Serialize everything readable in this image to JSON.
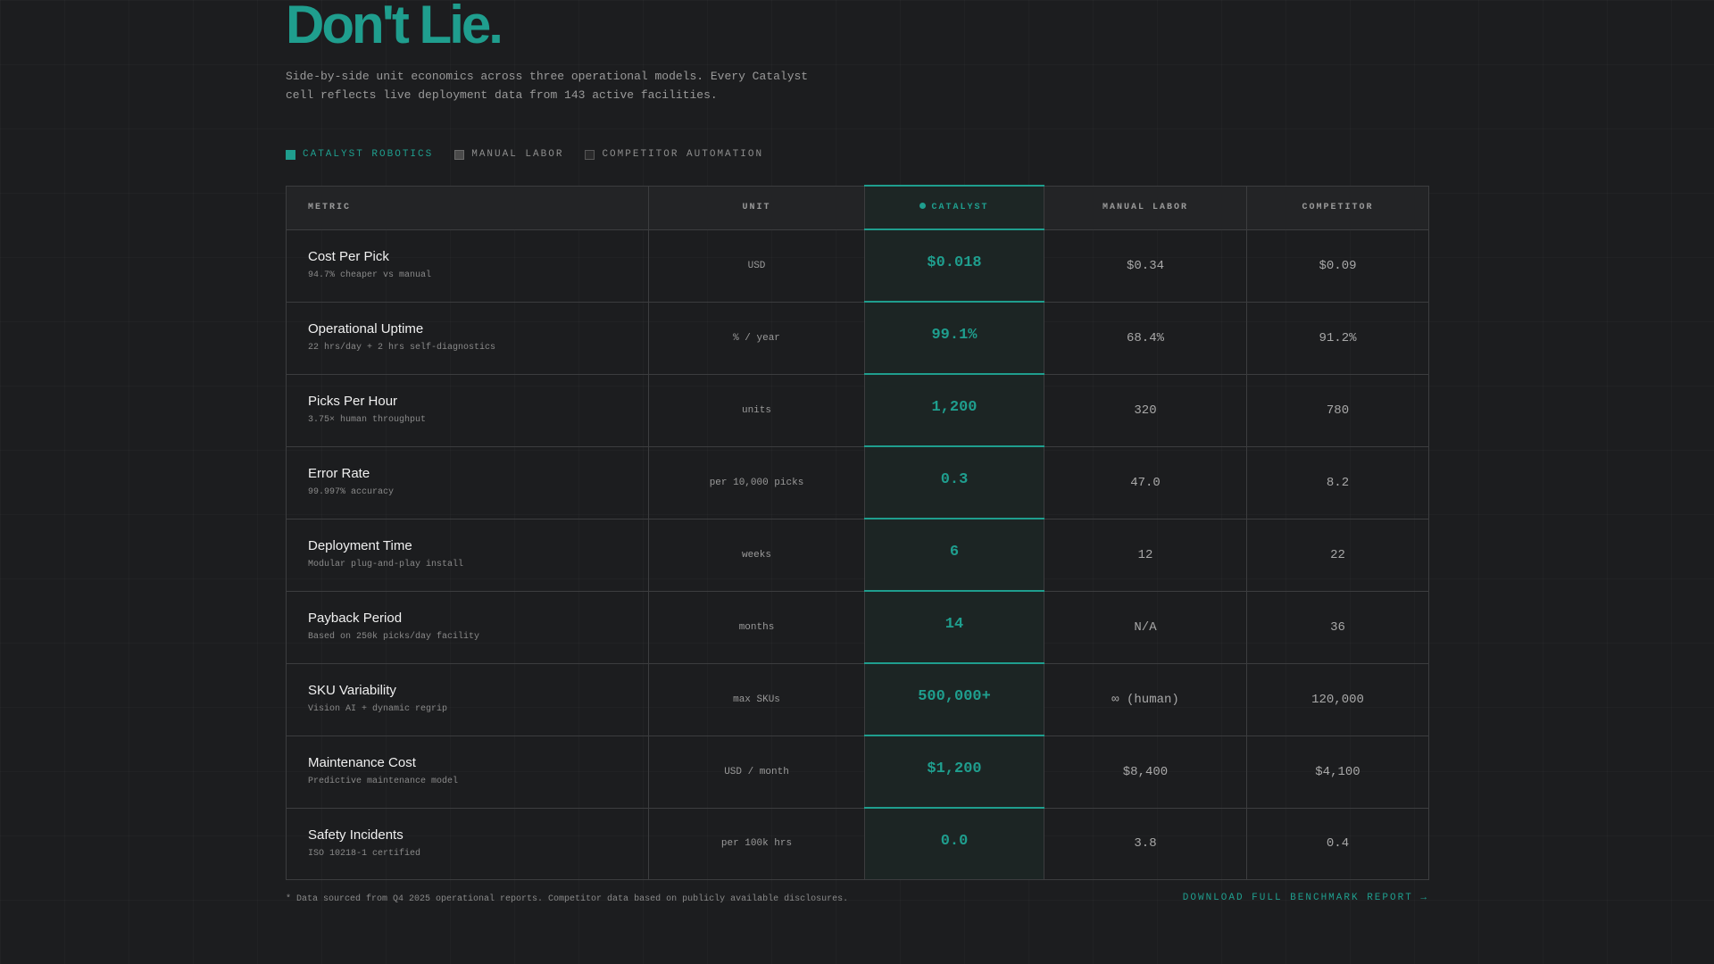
{
  "hero": {
    "headline": "Don't Lie.",
    "subtitle": "Side-by-side unit economics across three operational models. Every Catalyst cell reflects live deployment data from 143 active facilities."
  },
  "legend": {
    "items": [
      {
        "label": "Catalyst Robotics",
        "color": "#1f9e8e"
      },
      {
        "label": "Manual Labor",
        "color": "#4a4a4a"
      },
      {
        "label": "Competitor Automation",
        "color": "#2a2a2b"
      }
    ]
  },
  "table": {
    "headers": {
      "metric": "Metric",
      "unit": "Unit",
      "catalyst": "Catalyst",
      "manual": "Manual Labor",
      "competitor": "Competitor"
    },
    "rows": [
      {
        "name": "Cost Per Pick",
        "desc": "94.7% cheaper vs manual",
        "unit": "USD",
        "catalyst": "$0.018",
        "manual": "$0.34",
        "competitor": "$0.09"
      },
      {
        "name": "Operational Uptime",
        "desc": "22 hrs/day + 2 hrs self-diagnostics",
        "unit": "% / year",
        "catalyst": "99.1%",
        "manual": "68.4%",
        "competitor": "91.2%"
      },
      {
        "name": "Picks Per Hour",
        "desc": "3.75× human throughput",
        "unit": "units",
        "catalyst": "1,200",
        "manual": "320",
        "competitor": "780"
      },
      {
        "name": "Error Rate",
        "desc": "99.997% accuracy",
        "unit": "per 10,000 picks",
        "catalyst": "0.3",
        "manual": "47.0",
        "competitor": "8.2"
      },
      {
        "name": "Deployment Time",
        "desc": "Modular plug-and-play install",
        "unit": "weeks",
        "catalyst": "6",
        "manual": "12",
        "competitor": "22"
      },
      {
        "name": "Payback Period",
        "desc": "Based on 250k picks/day facility",
        "unit": "months",
        "catalyst": "14",
        "manual": "N/A",
        "competitor": "36"
      },
      {
        "name": "SKU Variability",
        "desc": "Vision AI + dynamic regrip",
        "unit": "max SKUs",
        "catalyst": "500,000+",
        "manual": "∞ (human)",
        "competitor": "120,000"
      },
      {
        "name": "Maintenance Cost",
        "desc": "Predictive maintenance model",
        "unit": "USD / month",
        "catalyst": "$1,200",
        "manual": "$8,400",
        "competitor": "$4,100"
      },
      {
        "name": "Safety Incidents",
        "desc": "ISO 10218-1 certified",
        "unit": "per 100k hrs",
        "catalyst": "0.0",
        "manual": "3.8",
        "competitor": "0.4"
      }
    ]
  },
  "footer": {
    "footnote": "* Data sourced from Q4 2025 operational reports. Competitor data based on publicly available disclosures.",
    "download_label": "Download Full Benchmark Report →"
  },
  "colors": {
    "accent": "#1f9e8e",
    "background": "#1c1d1f"
  }
}
